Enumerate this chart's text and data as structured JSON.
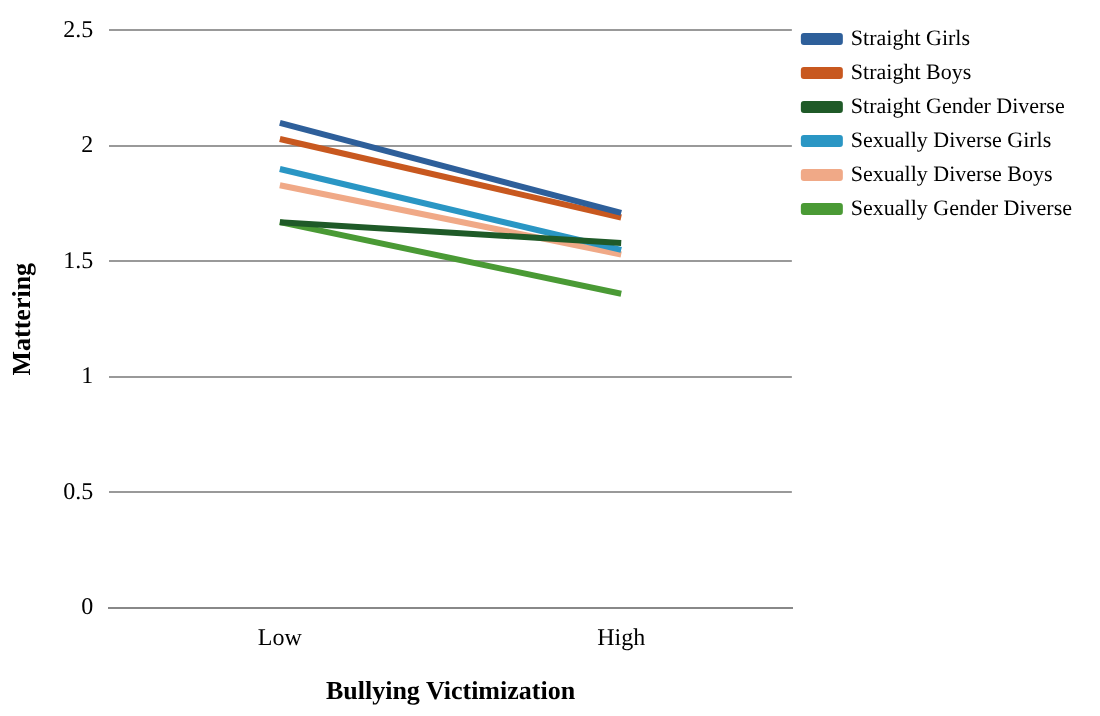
{
  "chart_data": {
    "type": "line",
    "xlabel": "Bullying Victimization",
    "ylabel": "Mattering",
    "categories": [
      "Low",
      "High"
    ],
    "series": [
      {
        "name": "Straight Girls",
        "color": "#2e5f9a",
        "values": [
          2.1,
          1.71
        ]
      },
      {
        "name": "Straight Boys",
        "color": "#c8581f",
        "values": [
          2.03,
          1.69
        ]
      },
      {
        "name": "Straight Gender Diverse",
        "color": "#1f5a28",
        "values": [
          1.67,
          1.58
        ]
      },
      {
        "name": "Sexually Diverse Girls",
        "color": "#2a96c4",
        "values": [
          1.9,
          1.55
        ]
      },
      {
        "name": "Sexually Diverse Boys",
        "color": "#f0a987",
        "values": [
          1.83,
          1.53
        ]
      },
      {
        "name": "Sexually Gender Diverse",
        "color": "#4a9a35",
        "values": [
          1.67,
          1.36
        ]
      }
    ],
    "ylim": [
      0,
      2.5
    ],
    "yticks": [
      0,
      0.5,
      1,
      1.5,
      2,
      2.5
    ],
    "grid": "y",
    "legend": "right",
    "marker": "none"
  }
}
